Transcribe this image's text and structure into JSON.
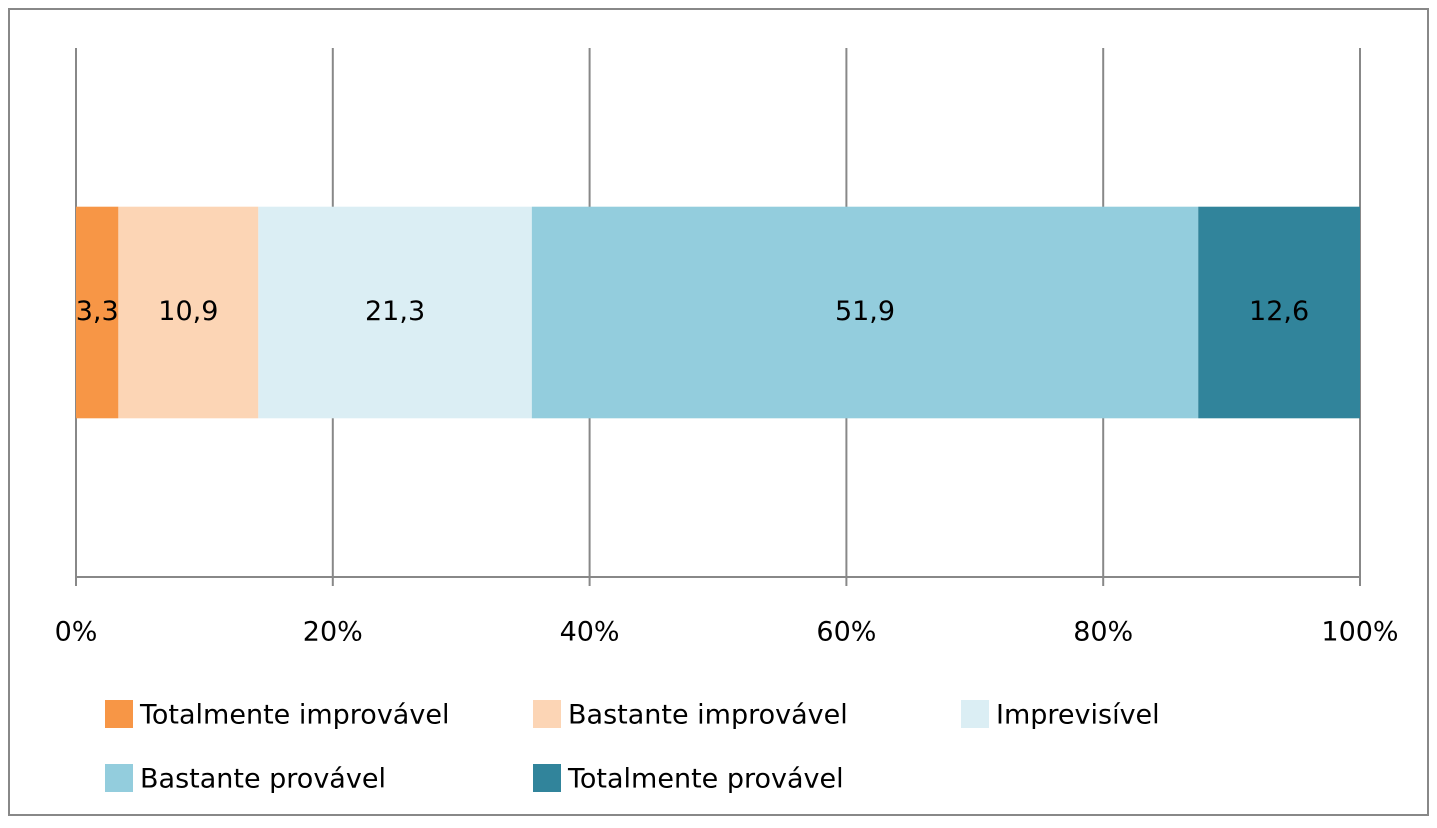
{
  "chart_data": {
    "type": "stacked_bar_horizontal",
    "categories": [
      null
    ],
    "series": [
      {
        "name": "Totalmente improvável",
        "color": "#f79646",
        "values": [
          3.3
        ],
        "value_labels": [
          "3,3"
        ]
      },
      {
        "name": "Bastante improvável",
        "color": "#fcd5b5",
        "values": [
          10.9
        ],
        "value_labels": [
          "10,9"
        ]
      },
      {
        "name": "Imprevisível",
        "color": "#dbeef4",
        "values": [
          21.3
        ],
        "value_labels": [
          "21,3"
        ]
      },
      {
        "name": "Bastante provável",
        "color": "#93cddd",
        "values": [
          51.9
        ],
        "value_labels": [
          "51,9"
        ]
      },
      {
        "name": "Totalmente provável",
        "color": "#31849b",
        "values": [
          12.6
        ],
        "value_labels": [
          "12,6"
        ]
      }
    ],
    "xlim": [
      0,
      100
    ],
    "xticks": [
      {
        "value": 0,
        "label": "0%"
      },
      {
        "value": 20,
        "label": "20%"
      },
      {
        "value": 40,
        "label": "40%"
      },
      {
        "value": 60,
        "label": "60%"
      },
      {
        "value": 80,
        "label": "80%"
      },
      {
        "value": 100,
        "label": "100%"
      }
    ],
    "grid": true,
    "legend": "bottom"
  }
}
